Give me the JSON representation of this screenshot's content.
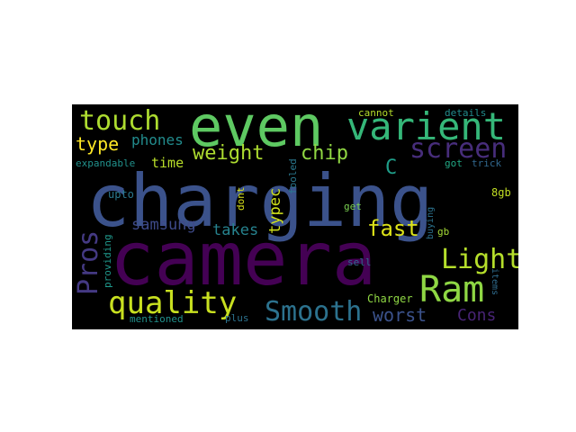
{
  "colors": {
    "background": "#000000",
    "page": "#ffffff"
  },
  "word_cloud": {
    "words": [
      {
        "text": "charging",
        "color": "#3b528b"
      },
      {
        "text": "camera",
        "color": "#440154"
      },
      {
        "text": "even",
        "color": "#5ec962"
      },
      {
        "text": "varient",
        "color": "#35b779"
      },
      {
        "text": "touch",
        "color": "#addc30"
      },
      {
        "text": "screen",
        "color": "#472d7b"
      },
      {
        "text": "Ram",
        "color": "#8fd744"
      },
      {
        "text": "quality",
        "color": "#c8e020"
      },
      {
        "text": "Smooth",
        "color": "#2c728e"
      },
      {
        "text": "Light",
        "color": "#b5de2b"
      },
      {
        "text": "Pros",
        "color": "#443983"
      },
      {
        "text": "fast",
        "color": "#dde318"
      },
      {
        "text": "weight",
        "color": "#addc30"
      },
      {
        "text": "chip",
        "color": "#90d743"
      },
      {
        "text": "type",
        "color": "#fde725"
      },
      {
        "text": "phones",
        "color": "#228c8d"
      },
      {
        "text": "worst",
        "color": "#3b528b"
      },
      {
        "text": "Cons",
        "color": "#482475"
      },
      {
        "text": "C",
        "color": "#1f9e89"
      },
      {
        "text": "time",
        "color": "#b8de29"
      },
      {
        "text": "samsung",
        "color": "#3e4a89"
      },
      {
        "text": "takes",
        "color": "#26828e"
      },
      {
        "text": "typec",
        "color": "#d2e21b"
      },
      {
        "text": "cannot",
        "color": "#b5de2b"
      },
      {
        "text": "details",
        "color": "#228c8d"
      },
      {
        "text": "expandable",
        "color": "#21918c"
      },
      {
        "text": "upto",
        "color": "#2a788e"
      },
      {
        "text": "fooled",
        "color": "#2a788e"
      },
      {
        "text": "got",
        "color": "#22a884"
      },
      {
        "text": "trick",
        "color": "#31688e"
      },
      {
        "text": "8gb",
        "color": "#c2df23"
      },
      {
        "text": "dont",
        "color": "#d8e219"
      },
      {
        "text": "get",
        "color": "#7ad151"
      },
      {
        "text": "gb",
        "color": "#a5db36"
      },
      {
        "text": "buying",
        "color": "#2c728e"
      },
      {
        "text": "providing",
        "color": "#1f988b"
      },
      {
        "text": "sell",
        "color": "#31688e"
      },
      {
        "text": "Charger",
        "color": "#8fd744"
      },
      {
        "text": "items",
        "color": "#2f6c8e"
      },
      {
        "text": "plus",
        "color": "#2c728e"
      },
      {
        "text": "mentioned",
        "color": "#21918c"
      }
    ]
  }
}
